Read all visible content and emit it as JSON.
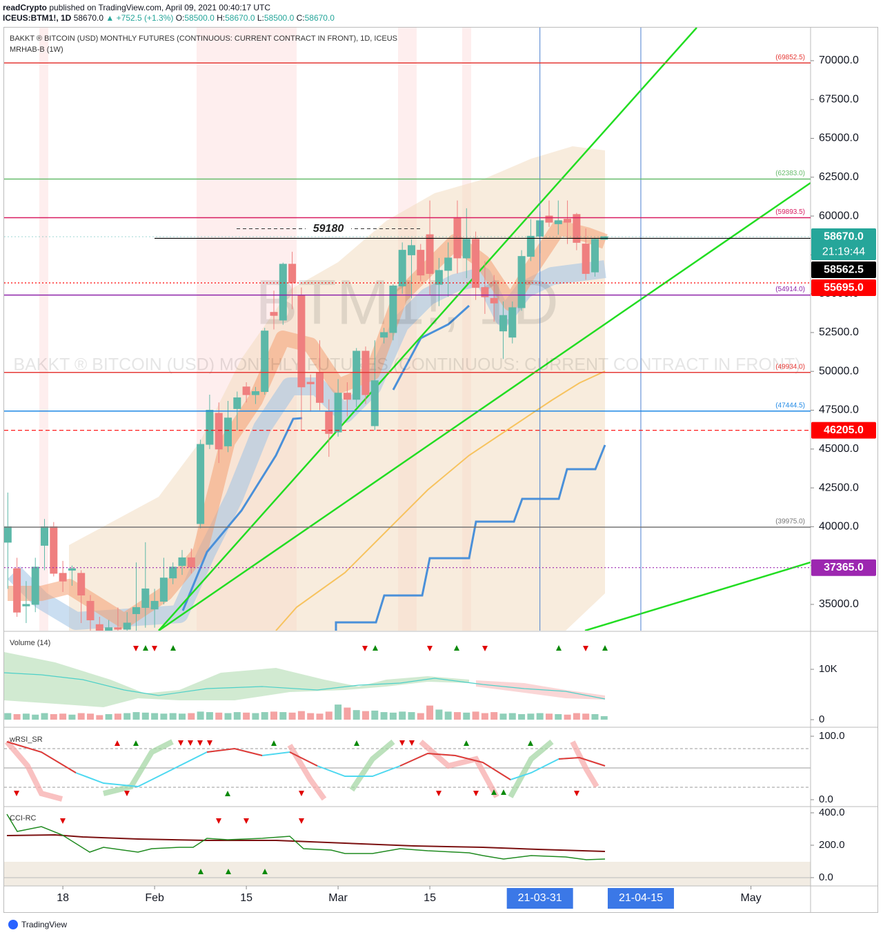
{
  "header": {
    "author": "readCrypto",
    "published": "published on TradingView.com, April 09, 2021 00:40:17 UTC",
    "symbol": "ICEUS:BTM1!, 1D",
    "last": "58670.0",
    "change": "▲ +752.5 (+1.3%)",
    "ohlc": [
      {
        "k": "O:",
        "v": "58500.0"
      },
      {
        "k": "H:",
        "v": "58670.0"
      },
      {
        "k": "L:",
        "v": "58500.0"
      },
      {
        "k": "C:",
        "v": "58670.0"
      }
    ]
  },
  "chart_data": [
    {
      "type": "candlestick",
      "title": "BAKKT ® BITCOIN (USD) MONTHLY FUTURES (CONTINUOUS: CURRENT CONTRACT IN FRONT), 1D, ICEUS",
      "indicator": "MRHAB-B (1W)",
      "watermark": [
        "BTM1!, 1D",
        "BAKKT ® BITCOIN (USD) MONTHLY FUTURES (CONTINUOUS: CURRENT CONTRACT IN FRONT)"
      ],
      "up_color": "#5cb8a8",
      "down_color": "#ef7f7f",
      "ohlc": [
        [
          39000,
          42200,
          36000,
          40000
        ],
        [
          37300,
          38000,
          34200,
          34500
        ],
        [
          34900,
          36500,
          33800,
          35000
        ],
        [
          35000,
          38000,
          34500,
          37400
        ],
        [
          38800,
          40500,
          37200,
          40000
        ],
        [
          40000,
          40300,
          36800,
          37000
        ],
        [
          37000,
          37800,
          35800,
          36500
        ],
        [
          37200,
          37500,
          36200,
          37300
        ],
        [
          37000,
          37200,
          33800,
          35600
        ],
        [
          35200,
          35600,
          33200,
          34000
        ],
        [
          33700,
          34200,
          32900,
          33200
        ],
        [
          33200,
          34000,
          32800,
          33500
        ],
        [
          33500,
          34800,
          33000,
          33400
        ],
        [
          33400,
          34500,
          33000,
          33800
        ],
        [
          34400,
          37700,
          33300,
          34800
        ],
        [
          34800,
          39000,
          33500,
          36000
        ],
        [
          34700,
          36000,
          33500,
          35200
        ],
        [
          35200,
          38000,
          35000,
          36700
        ],
        [
          36700,
          37700,
          36300,
          37400
        ],
        [
          37500,
          38500,
          36900,
          38000
        ],
        [
          38000,
          38600,
          37000,
          37400
        ],
        [
          40200,
          45600,
          39900,
          45300
        ],
        [
          45300,
          48500,
          45000,
          47500
        ],
        [
          47300,
          48000,
          44100,
          45000
        ],
        [
          45200,
          48100,
          44800,
          47000
        ],
        [
          47600,
          48700,
          46200,
          48300
        ],
        [
          49000,
          49300,
          48000,
          48500
        ],
        [
          48500,
          49000,
          47900,
          48700
        ],
        [
          48700,
          52800,
          48500,
          52600
        ],
        [
          53800,
          55200,
          52700,
          53600
        ],
        [
          53300,
          57000,
          53000,
          56900
        ],
        [
          56900,
          57700,
          54000,
          55700
        ],
        [
          54900,
          55400,
          46200,
          49000
        ],
        [
          49300,
          49800,
          47400,
          49200
        ],
        [
          49900,
          52000,
          47500,
          48000
        ],
        [
          47400,
          48200,
          44500,
          46000
        ],
        [
          46100,
          49500,
          45800,
          48600
        ],
        [
          48600,
          49300,
          47100,
          48200
        ],
        [
          48200,
          51500,
          47700,
          51300
        ],
        [
          51300,
          51600,
          47900,
          48500
        ],
        [
          46500,
          52000,
          46200,
          49400
        ],
        [
          52200,
          52800,
          51800,
          52500
        ],
        [
          52500,
          55600,
          52000,
          55500
        ],
        [
          55500,
          58300,
          55000,
          57800
        ],
        [
          57500,
          58500,
          54700,
          58100
        ],
        [
          57800,
          58200,
          55800,
          56200
        ],
        [
          58800,
          61000,
          54900,
          56300
        ],
        [
          55600,
          57300,
          54200,
          56500
        ],
        [
          56500,
          58300,
          54800,
          57300
        ],
        [
          59900,
          61000,
          56300,
          57300
        ],
        [
          57300,
          60500,
          56000,
          58500
        ],
        [
          58500,
          59000,
          54600,
          55400
        ],
        [
          55400,
          57100,
          53700,
          54800
        ],
        [
          54700,
          56200,
          53200,
          54400
        ],
        [
          52600,
          54500,
          50800,
          53600
        ],
        [
          52200,
          54500,
          51800,
          54100
        ],
        [
          54100,
          57800,
          53900,
          57400
        ],
        [
          57400,
          59800,
          57100,
          58700
        ],
        [
          58700,
          60300,
          57600,
          59700
        ],
        [
          60000,
          61000,
          59300,
          59600
        ],
        [
          59500,
          61000,
          58800,
          59700
        ],
        [
          59800,
          61000,
          58200,
          59600
        ],
        [
          60100,
          60200,
          57800,
          58300
        ],
        [
          58200,
          59200,
          55900,
          56300
        ],
        [
          56400,
          58600,
          56100,
          58500
        ],
        [
          58500,
          58670,
          58500,
          58670
        ]
      ],
      "ylim": [
        33310,
        72130
      ],
      "yticks": [
        {
          "value": 35000,
          "label": "35000.0"
        },
        {
          "value": 37500,
          "label": "37500.0"
        },
        {
          "value": 40000,
          "label": "40000.0"
        },
        {
          "value": 42500,
          "label": "42500.0"
        },
        {
          "value": 45000,
          "label": "45000.0"
        },
        {
          "value": 47500,
          "label": "47500.0"
        },
        {
          "value": 50000,
          "label": "50000.0"
        },
        {
          "value": 52500,
          "label": "52500.0"
        },
        {
          "value": 55000,
          "label": "55000.0"
        },
        {
          "value": 57500,
          "label": "57500.0"
        },
        {
          "value": 60000,
          "label": "60000.0"
        },
        {
          "value": 62500,
          "label": "62500.0"
        },
        {
          "value": 65000,
          "label": "65000.0"
        },
        {
          "value": 67500,
          "label": "67500.0"
        },
        {
          "value": 70000,
          "label": "70000.0"
        }
      ],
      "xlim": [
        -0.4,
        87.5
      ],
      "xticks": [
        {
          "value": 6,
          "label": "18"
        },
        {
          "value": 16,
          "label": "Feb"
        },
        {
          "value": 26,
          "label": "15"
        },
        {
          "value": 36,
          "label": "Mar"
        },
        {
          "value": 46,
          "label": "15"
        },
        {
          "value": 58,
          "label": "21-03-31",
          "highlight": true
        },
        {
          "value": 69,
          "label": "21-04-15",
          "highlight": true
        },
        {
          "value": 81,
          "label": "May"
        }
      ],
      "levels": [
        {
          "value": 69852.5,
          "label": "(69852.5)",
          "color": "#e53935"
        },
        {
          "value": 62383,
          "label": "(62383.0)",
          "color": "#66bb6a"
        },
        {
          "value": 59893.5,
          "label": "(59893.5)",
          "color": "#d81b60"
        },
        {
          "value": 54914,
          "label": "(54914.0)",
          "color": "#8e24aa"
        },
        {
          "value": 49934,
          "label": "(49934.0)",
          "color": "#e53935"
        },
        {
          "value": 47444.5,
          "label": "(47444.5)",
          "color": "#1e88e5"
        },
        {
          "value": 39975,
          "label": "(39975.0)",
          "color": "#757575"
        }
      ],
      "price_labels": [
        {
          "value": 58670,
          "label": "58670.0",
          "sub": "21:19:44",
          "color": "#26a69a",
          "line": "dotted"
        },
        {
          "value": 58562.5,
          "label": "58562.5",
          "color": "#000000",
          "line": "solid"
        },
        {
          "value": 55695,
          "label": "55695.0",
          "color": "#ff0000",
          "line": "dotted"
        },
        {
          "value": 46205,
          "label": "46205.0",
          "color": "#ff0000",
          "line": "dashed"
        },
        {
          "value": 37365,
          "label": "37365.0",
          "color": "#9c27b0",
          "line": "dotted"
        }
      ],
      "annotation": {
        "value": 59180,
        "label": "59180"
      }
    },
    {
      "type": "bar",
      "title": "Volume (14)",
      "up_color": "#8fcfb9",
      "down_color": "#f4a3a3",
      "values": [
        1300,
        1100,
        1200,
        1000,
        1300,
        1100,
        1200,
        1000,
        1300,
        1200,
        900,
        1100,
        1200,
        1300,
        1500,
        1400,
        1300,
        1200,
        1300,
        1200,
        1300,
        1600,
        1500,
        1400,
        1300,
        1500,
        1400,
        1300,
        1500,
        1600,
        1500,
        1400,
        1700,
        1300,
        1200,
        1600,
        3000,
        2400,
        1900,
        1700,
        1800,
        1500,
        1400,
        1600,
        1500,
        1300,
        2800,
        2000,
        1600,
        1500,
        1400,
        1600,
        1300,
        1500,
        1200,
        1300,
        1100,
        1200,
        1300,
        1200,
        1100,
        1000,
        1300,
        1200,
        1100,
        700
      ],
      "ylim": [
        -1230,
        17400
      ],
      "yticks": [
        0,
        {
          "value": 10000,
          "label": "10K"
        }
      ]
    },
    {
      "type": "indicator",
      "title": "wRSI_SR",
      "ylim": [
        -9.8,
        110.9
      ],
      "yticks": [
        {
          "value": 0,
          "label": "0.0"
        },
        {
          "value": 100,
          "label": "100.0"
        }
      ]
    },
    {
      "type": "indicator",
      "title": "CCI-RC",
      "ylim": [
        -47,
        434
      ],
      "yticks": [
        {
          "value": 0,
          "label": "0.0"
        },
        {
          "value": 200,
          "label": "200.0"
        },
        {
          "value": 400,
          "label": "400.0"
        }
      ]
    }
  ],
  "footer": "TradingView"
}
